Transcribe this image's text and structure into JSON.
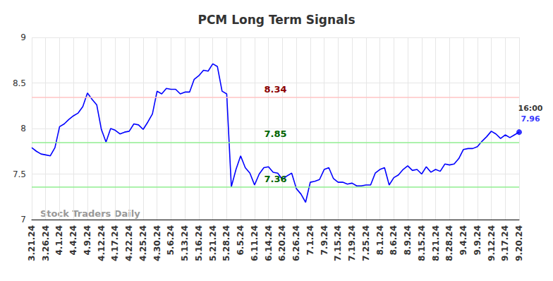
{
  "chart_data": {
    "type": "line",
    "title": "PCM Long Term Signals",
    "watermark": "Stock Traders Daily",
    "color": "#0000ff",
    "grid": true,
    "ylim": [
      7,
      9
    ],
    "yticks": [
      7,
      7.5,
      8,
      8.5,
      9
    ],
    "categories": [
      "3.21.24",
      null,
      null,
      "3.26.24",
      null,
      null,
      "4.1.24",
      null,
      null,
      "4.4.24",
      null,
      null,
      "4.9.24",
      null,
      null,
      "4.12.24",
      null,
      null,
      "4.17.24",
      null,
      null,
      "4.22.24",
      null,
      null,
      "4.25.24",
      null,
      null,
      "4.30.24",
      null,
      null,
      "5.6.24",
      null,
      null,
      "5.13.24",
      null,
      null,
      "5.16.24",
      null,
      null,
      "5.21.24",
      null,
      null,
      "5.28.24",
      null,
      null,
      "6.5.24",
      null,
      null,
      "6.11.24",
      null,
      null,
      "6.14.24",
      null,
      null,
      "6.20.24",
      null,
      null,
      "6.26.24",
      null,
      null,
      "7.1.24",
      null,
      null,
      "7.9.24",
      null,
      null,
      "7.15.24",
      null,
      null,
      "7.19.24",
      null,
      null,
      "7.25.24",
      null,
      null,
      "8.1.24",
      null,
      null,
      "8.6.24",
      null,
      null,
      "8.9.24",
      null,
      null,
      "8.15.24",
      null,
      null,
      "8.21.24",
      null,
      null,
      "8.28.24",
      null,
      null,
      "9.4.24",
      null,
      null,
      "9.9.24",
      null,
      null,
      "9.12.24",
      null,
      null,
      "9.17.24",
      null,
      null,
      "9.20.24"
    ],
    "values": [
      7.79,
      7.75,
      7.72,
      7.71,
      7.7,
      7.79,
      8.02,
      8.05,
      8.1,
      8.14,
      8.17,
      8.24,
      8.39,
      8.32,
      8.26,
      7.99,
      7.85,
      8.0,
      7.98,
      7.94,
      7.96,
      7.97,
      8.05,
      8.04,
      7.99,
      8.07,
      8.16,
      8.41,
      8.38,
      8.44,
      8.43,
      8.43,
      8.38,
      8.4,
      8.4,
      8.54,
      8.58,
      8.64,
      8.63,
      8.71,
      8.68,
      8.41,
      8.38,
      7.36,
      7.55,
      7.7,
      7.57,
      7.51,
      7.38,
      7.5,
      7.57,
      7.58,
      7.52,
      7.51,
      7.44,
      7.48,
      7.51,
      7.34,
      7.28,
      7.19,
      7.41,
      7.42,
      7.44,
      7.55,
      7.57,
      7.45,
      7.41,
      7.41,
      7.39,
      7.4,
      7.37,
      7.37,
      7.38,
      7.38,
      7.51,
      7.55,
      7.57,
      7.38,
      7.46,
      7.49,
      7.55,
      7.59,
      7.54,
      7.55,
      7.5,
      7.58,
      7.52,
      7.55,
      7.53,
      7.61,
      7.6,
      7.61,
      7.67,
      7.77,
      7.78,
      7.78,
      7.8,
      7.86,
      7.91,
      7.97,
      7.94,
      7.89,
      7.93,
      7.9,
      7.93,
      7.96
    ],
    "levels": [
      {
        "value": 8.34,
        "color": "#ffc4c4",
        "label_color": "#8b0000"
      },
      {
        "value": 7.85,
        "color": "#90ee90",
        "label_color": "#006400"
      },
      {
        "value": 7.36,
        "color": "#90ee90",
        "label_color": "#006400"
      }
    ],
    "last_point": {
      "time": "16:00"
    }
  }
}
